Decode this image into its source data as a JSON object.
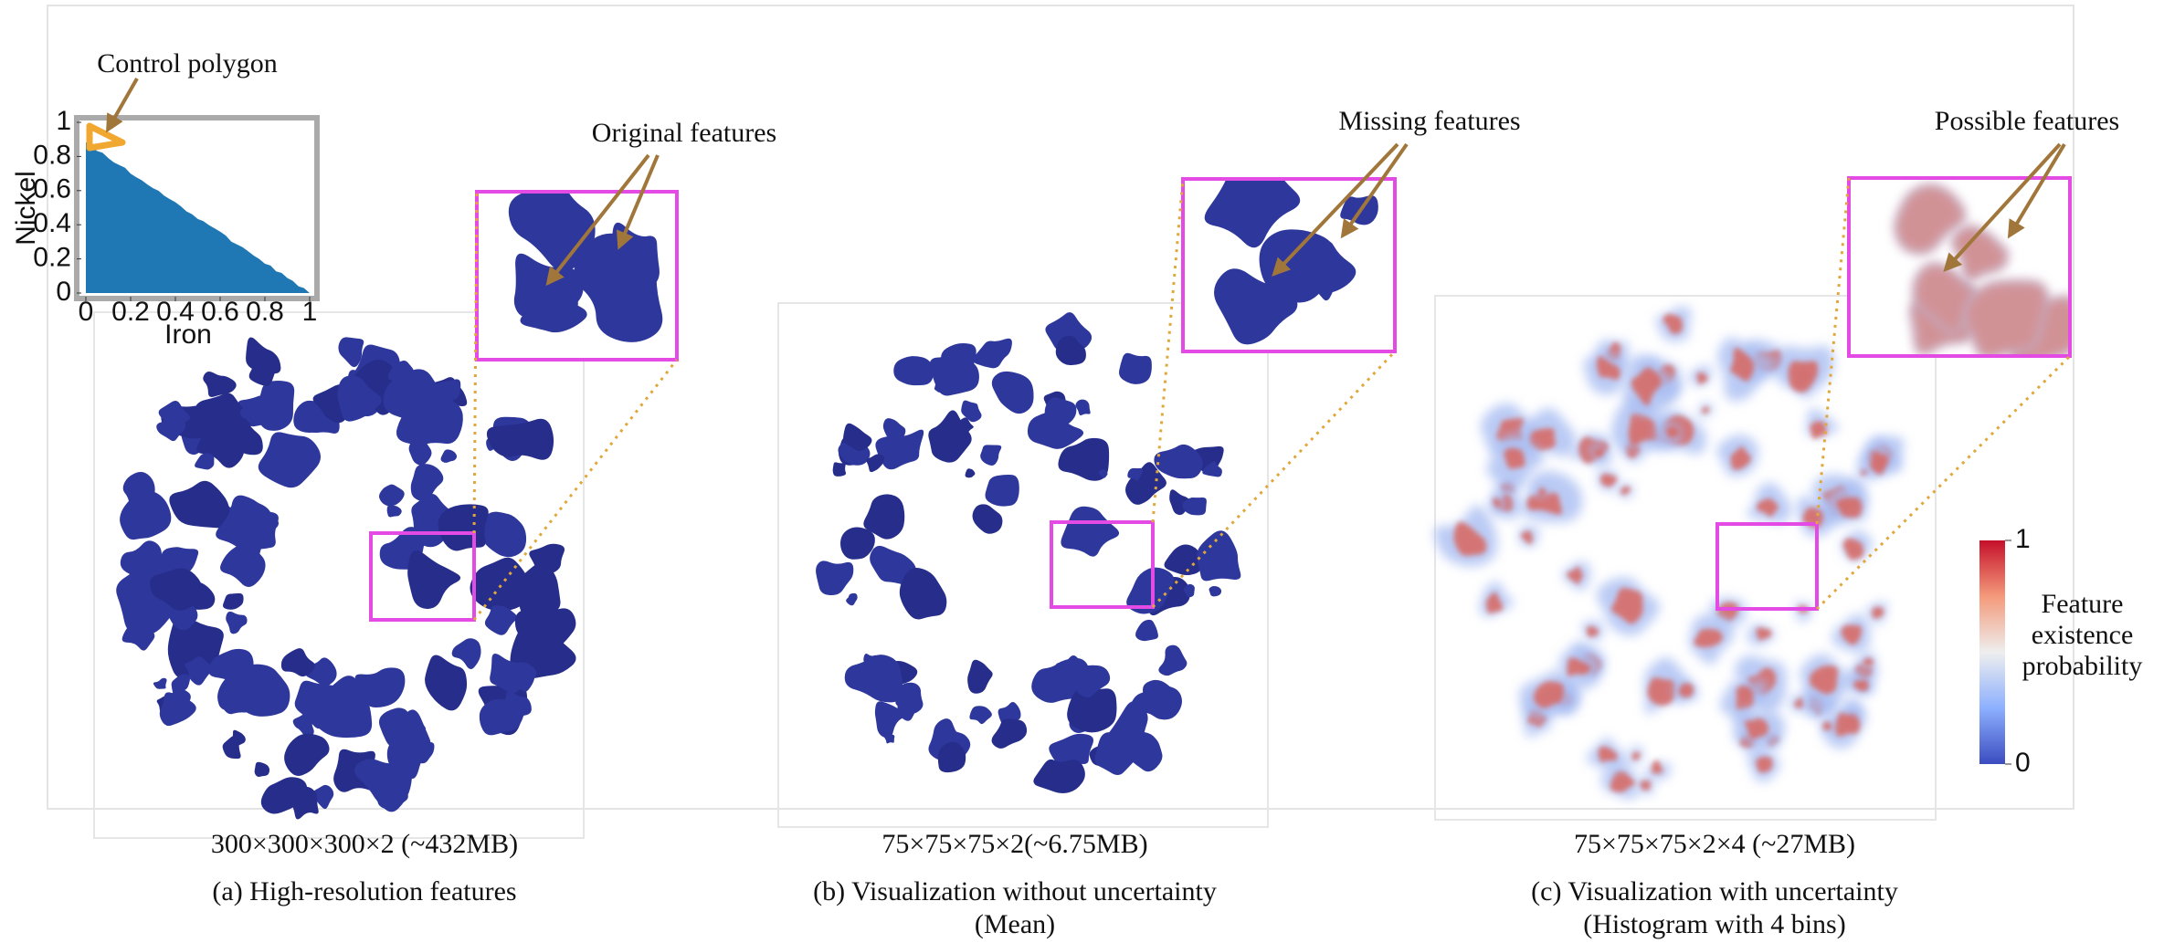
{
  "annotations": {
    "control_polygon": "Control polygon",
    "original": "Original features",
    "missing": "Missing features",
    "possible": "Possible features"
  },
  "inset_plot": {
    "x_label": "Iron",
    "y_label": "Nickel",
    "xticks": [
      0,
      0.2,
      0.4,
      0.6,
      0.8,
      1
    ],
    "yticks": [
      0,
      0.2,
      0.4,
      0.6,
      0.8,
      1
    ]
  },
  "panels": [
    {
      "size": "300×300×300×2 (~432MB)",
      "caption": [
        "(a) High-resolution features"
      ]
    },
    {
      "size": "75×75×75×2(~6.75MB)",
      "caption": [
        "(b) Visualization without uncertainty",
        "(Mean)"
      ]
    },
    {
      "size": "75×75×75×2×4 (~27MB)",
      "caption": [
        "(c) Visualization with uncertainty",
        "(Histogram with 4 bins)"
      ]
    }
  ],
  "colorbar": {
    "label": "Feature existence probability",
    "ticks": [
      0,
      1
    ]
  }
}
